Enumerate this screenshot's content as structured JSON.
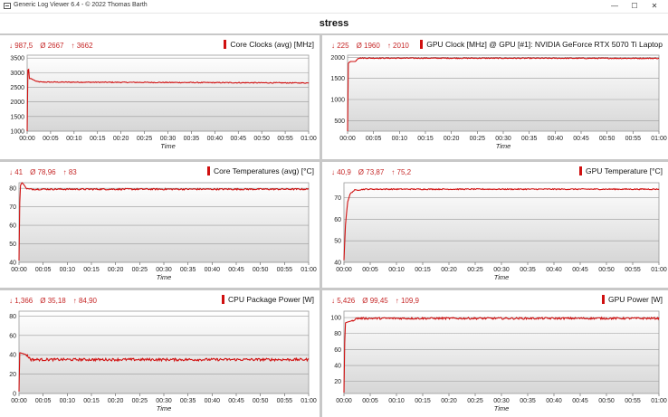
{
  "window": {
    "title": "Generic Log Viewer 6.4 - © 2022 Thomas Barth",
    "min_glyph": "—",
    "max_glyph": "☐",
    "close_glyph": "✕"
  },
  "main_title": "stress",
  "colors": {
    "series": "#d01010",
    "stats": "#c62828"
  },
  "charts": [
    {
      "id": "core-clocks",
      "title": "Core Clocks (avg) [MHz]",
      "stats": {
        "min": "↓ 987,5",
        "avg": "Ø 2667",
        "max": "↑ 3662"
      },
      "x_ticks": [
        "00:00",
        "00:05",
        "00:10",
        "00:15",
        "00:20",
        "00:25",
        "00:30",
        "00:35",
        "00:40",
        "00:45",
        "00:50",
        "00:55",
        "01:00"
      ],
      "x_label": "Time",
      "y_ticks": [
        "1000",
        "1500",
        "2000",
        "2500",
        "3000",
        "3500"
      ],
      "chart_data": {
        "type": "line",
        "ylim": [
          1000,
          3600
        ],
        "xlim": [
          0,
          60
        ],
        "series": [
          {
            "x": [
              0,
              0.2,
              0.4,
              0.8,
              2,
              3,
              60
            ],
            "y": [
              1000,
              3600,
              2800,
              2800,
              2700,
              2680,
              2650
            ]
          }
        ],
        "noise": 15,
        "grid": true
      }
    },
    {
      "id": "gpu-clock",
      "title": "GPU Clock [MHz] @ GPU [#1]: NVIDIA GeForce RTX 5070 Ti Laptop",
      "stats": {
        "min": "↓ 225",
        "avg": "Ø 1960",
        "max": "↑ 2010"
      },
      "x_ticks": [
        "00:00",
        "00:05",
        "00:10",
        "00:15",
        "00:20",
        "00:25",
        "00:30",
        "00:35",
        "00:40",
        "00:45",
        "00:50",
        "00:55",
        "01:00"
      ],
      "x_label": "Time",
      "y_ticks": [
        "500",
        "1000",
        "1500",
        "2000"
      ],
      "chart_data": {
        "type": "line",
        "ylim": [
          250,
          2050
        ],
        "xlim": [
          0,
          60
        ],
        "series": [
          {
            "x": [
              0,
              0.1,
              0.3,
              0.6,
              1.5,
              2,
              60
            ],
            "y": [
              250,
              1850,
              1880,
              1900,
              1900,
              1980,
              1975
            ]
          }
        ],
        "noise": 10,
        "grid": true
      }
    },
    {
      "id": "core-temperatures",
      "title": "Core Temperatures (avg) [°C]",
      "stats": {
        "min": "↓ 41",
        "avg": "Ø 78,96",
        "max": "↑ 83"
      },
      "x_ticks": [
        "00:00",
        "00:05",
        "00:10",
        "00:15",
        "00:20",
        "00:25",
        "00:30",
        "00:35",
        "00:40",
        "00:45",
        "00:50",
        "00:55",
        "01:00"
      ],
      "x_label": "Time",
      "y_ticks": [
        "40",
        "50",
        "60",
        "70",
        "80"
      ],
      "chart_data": {
        "type": "line",
        "ylim": [
          40,
          83
        ],
        "xlim": [
          0,
          60
        ],
        "series": [
          {
            "x": [
              0,
              0.2,
              0.6,
              1,
              1.5,
              2,
              60
            ],
            "y": [
              41,
              81,
              83,
              82,
              80,
              79.5,
              79.5
            ]
          }
        ],
        "noise": 0.4,
        "grid": true
      }
    },
    {
      "id": "gpu-temperature",
      "title": "GPU Temperature [°C]",
      "stats": {
        "min": "↓ 40,9",
        "avg": "Ø 73,87",
        "max": "↑ 75,2"
      },
      "x_ticks": [
        "00:00",
        "00:05",
        "00:10",
        "00:15",
        "00:20",
        "00:25",
        "00:30",
        "00:35",
        "00:40",
        "00:45",
        "00:50",
        "00:55",
        "01:00"
      ],
      "x_label": "Time",
      "y_ticks": [
        "40",
        "50",
        "60",
        "70"
      ],
      "chart_data": {
        "type": "line",
        "ylim": [
          40,
          77
        ],
        "xlim": [
          0,
          60
        ],
        "series": [
          {
            "x": [
              0,
              0.3,
              0.7,
              1.2,
              2,
              4,
              60
            ],
            "y": [
              41,
              58,
              68,
              72,
              73.5,
              74,
              74
            ]
          }
        ],
        "noise": 0.25,
        "grid": true
      }
    },
    {
      "id": "cpu-package-power",
      "title": "CPU Package Power [W]",
      "stats": {
        "min": "↓ 1,366",
        "avg": "Ø 35,18",
        "max": "↑ 84,90"
      },
      "x_ticks": [
        "00:00",
        "00:05",
        "00:10",
        "00:15",
        "00:20",
        "00:25",
        "00:30",
        "00:35",
        "00:40",
        "00:45",
        "00:50",
        "00:55",
        "01:00"
      ],
      "x_label": "Time",
      "y_ticks": [
        "0",
        "20",
        "40",
        "60",
        "80"
      ],
      "chart_data": {
        "type": "line",
        "ylim": [
          0,
          85
        ],
        "xlim": [
          0,
          60
        ],
        "series": [
          {
            "x": [
              0,
              0.1,
              0.3,
              1.5,
              2.5,
              60
            ],
            "y": [
              2,
              42,
              42,
              40,
              35,
              35
            ]
          }
        ],
        "noise": 1.3,
        "grid": true
      }
    },
    {
      "id": "gpu-power",
      "title": "GPU Power [W]",
      "stats": {
        "min": "↓ 5,426",
        "avg": "Ø 99,45",
        "max": "↑ 109,9"
      },
      "x_ticks": [
        "00:00",
        "00:05",
        "00:10",
        "00:15",
        "00:20",
        "00:25",
        "00:30",
        "00:35",
        "00:40",
        "00:45",
        "00:50",
        "00:55",
        "01:00"
      ],
      "x_label": "Time",
      "y_ticks": [
        "0",
        "20",
        "40",
        "60",
        "80",
        "100"
      ],
      "chart_data": {
        "type": "line",
        "ylim": [
          5,
          108
        ],
        "xlim": [
          0,
          60
        ],
        "series": [
          {
            "x": [
              0,
              0.2,
              0.5,
              1.5,
              2.5,
              60
            ],
            "y": [
              6,
              93,
              94,
              96,
              99,
              99
            ]
          }
        ],
        "noise": 1.2,
        "grid": true
      }
    }
  ]
}
